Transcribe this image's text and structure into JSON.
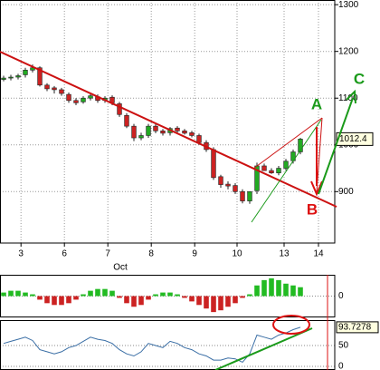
{
  "chart_data": [
    {
      "type": "candlestick",
      "x": [
        0.5,
        1.5,
        2.5,
        3.5,
        4.5,
        5.5,
        6.5,
        7.5,
        8.5,
        9.5,
        10.5,
        11.5,
        12.5,
        13.5,
        14.5,
        15.5,
        16.5,
        17.5,
        18.5,
        19.5,
        20.5,
        21.5,
        22.5,
        23.5,
        24.5,
        25.5,
        26.5,
        27.5,
        28.5,
        29.5,
        30.5,
        31.5,
        32.5,
        33.5,
        34.5,
        35.5,
        36.5,
        37.5,
        38.5,
        39.5,
        40.5,
        41.5
      ],
      "open": [
        1140,
        1143,
        1145,
        1150,
        1160,
        1165,
        1128,
        1122,
        1118,
        1108,
        1095,
        1092,
        1100,
        1103,
        1095,
        1102,
        1088,
        1063,
        1040,
        1015,
        1020,
        1040,
        1030,
        1026,
        1036,
        1030,
        1026,
        1020,
        1005,
        990,
        932,
        916,
        913,
        900,
        880,
        902,
        955,
        945,
        940,
        950,
        966,
        985
      ],
      "high": [
        1148,
        1150,
        1152,
        1165,
        1172,
        1168,
        1132,
        1126,
        1122,
        1112,
        1100,
        1104,
        1110,
        1108,
        1104,
        1106,
        1092,
        1068,
        1045,
        1026,
        1045,
        1045,
        1034,
        1038,
        1040,
        1034,
        1030,
        1024,
        1010,
        995,
        936,
        922,
        918,
        905,
        900,
        962,
        960,
        950,
        955,
        970,
        990,
        1015
      ],
      "low": [
        1136,
        1138,
        1140,
        1144,
        1155,
        1125,
        1115,
        1110,
        1105,
        1090,
        1085,
        1088,
        1095,
        1090,
        1090,
        1085,
        1060,
        1036,
        1008,
        1010,
        1015,
        1025,
        1020,
        1020,
        1026,
        1022,
        1016,
        1000,
        985,
        925,
        908,
        905,
        895,
        875,
        874,
        895,
        945,
        938,
        935,
        945,
        960,
        980
      ],
      "close": [
        1143,
        1145,
        1148,
        1160,
        1165,
        1128,
        1120,
        1118,
        1110,
        1095,
        1090,
        1100,
        1105,
        1095,
        1100,
        1090,
        1065,
        1040,
        1015,
        1020,
        1040,
        1030,
        1025,
        1035,
        1030,
        1025,
        1020,
        1005,
        990,
        930,
        915,
        912,
        900,
        880,
        900,
        955,
        945,
        940,
        950,
        965,
        985,
        1012.4
      ],
      "up_color": "#22aa22",
      "down_color": "#cc2222",
      "last_value": 1012.4,
      "xlim": [
        0,
        46.25
      ],
      "ylim": [
        790,
        1310
      ],
      "yticks": [
        900,
        1000,
        1100,
        1200,
        1300
      ],
      "xticks": [
        {
          "value": 2.9,
          "label": "3"
        },
        {
          "value": 8.9,
          "label": "6"
        },
        {
          "value": 14.9,
          "label": "7"
        },
        {
          "value": 20.9,
          "label": "8"
        },
        {
          "value": 26.9,
          "label": "9"
        },
        {
          "value": 32.75,
          "label": "10"
        },
        {
          "value": 39.25,
          "label": "13"
        },
        {
          "value": 44,
          "label": "14"
        }
      ],
      "xlabel": "Oct",
      "grid": true,
      "annotations": [
        {
          "text": "A",
          "color": "#1a9a1a"
        },
        {
          "text": "B",
          "color": "#dd1111"
        },
        {
          "text": "C",
          "color": "#1a9a1a"
        }
      ]
    },
    {
      "type": "bar",
      "x": [
        0.5,
        1.5,
        2.5,
        3.5,
        4.5,
        5.5,
        6.5,
        7.5,
        8.5,
        9.5,
        10.5,
        11.5,
        12.5,
        13.5,
        14.5,
        15.5,
        16.5,
        17.5,
        18.5,
        19.5,
        20.5,
        21.5,
        22.5,
        23.5,
        24.5,
        25.5,
        26.5,
        27.5,
        28.5,
        29.5,
        30.5,
        31.5,
        32.5,
        33.5,
        34.5,
        35.5,
        36.5,
        37.5,
        38.5,
        39.5,
        40.5,
        41.5
      ],
      "values": [
        2,
        3,
        3,
        2,
        1,
        -2,
        -4,
        -5,
        -5,
        -4,
        -2,
        1,
        3,
        4,
        4,
        3,
        -1,
        -4,
        -6,
        -5,
        -2,
        1,
        2,
        2,
        1,
        -1,
        -3,
        -5,
        -7,
        -9,
        -8,
        -6,
        -4,
        -1,
        1,
        6,
        9,
        10,
        9,
        7,
        6,
        5
      ],
      "up_color": "#22bb22",
      "down_color": "#cc2222",
      "xlim": [
        0,
        46.25
      ],
      "ylim": [
        -12,
        12
      ],
      "yticks": [
        0
      ]
    },
    {
      "type": "line",
      "x": [
        0.5,
        1.5,
        2.5,
        3.5,
        4.5,
        5.5,
        6.5,
        7.5,
        8.5,
        9.5,
        10.5,
        11.5,
        12.5,
        13.5,
        14.5,
        15.5,
        16.5,
        17.5,
        18.5,
        19.5,
        20.5,
        21.5,
        22.5,
        23.5,
        24.5,
        25.5,
        26.5,
        27.5,
        28.5,
        29.5,
        30.5,
        31.5,
        32.5,
        33.5,
        34.5,
        35.5,
        36.5,
        37.5,
        38.5,
        39.5,
        40.5,
        41.5
      ],
      "values": [
        55,
        60,
        65,
        70,
        62,
        40,
        35,
        30,
        35,
        45,
        50,
        60,
        70,
        65,
        62,
        55,
        40,
        30,
        25,
        35,
        55,
        50,
        45,
        60,
        55,
        45,
        40,
        30,
        25,
        15,
        15,
        20,
        18,
        10,
        30,
        75,
        70,
        65,
        75,
        80,
        88,
        93.7278
      ],
      "color": "#3a6ea5",
      "last_value": 93.7278,
      "xlim": [
        0,
        46.25
      ],
      "ylim": [
        0,
        100
      ],
      "yticks": [
        0,
        50
      ]
    }
  ]
}
